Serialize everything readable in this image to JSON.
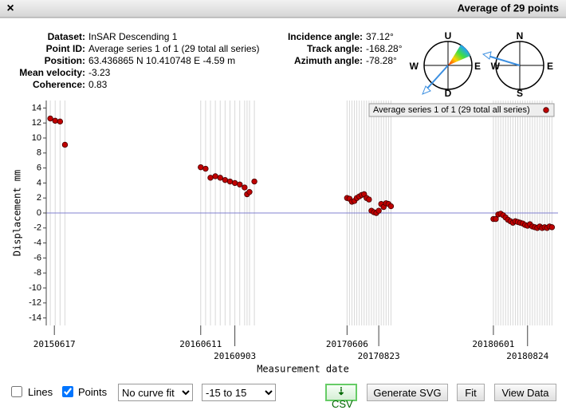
{
  "window": {
    "title": "Average of 29 points",
    "close": "×"
  },
  "info": {
    "left": [
      {
        "label": "Dataset:",
        "value": "InSAR Descending 1"
      },
      {
        "label": "Point ID:",
        "value": "Average series 1 of 1 (29 total all series)"
      },
      {
        "label": "Position:",
        "value": "63.436865 N 10.410748 E -4.59 m"
      },
      {
        "label": "Mean velocity:",
        "value": "-3.23"
      },
      {
        "label": "Coherence:",
        "value": "0.83"
      }
    ],
    "right": [
      {
        "label": "Incidence angle:",
        "value": "37.12°"
      },
      {
        "label": "Track angle:",
        "value": "-168.28°"
      },
      {
        "label": "Azimuth angle:",
        "value": "-78.28°"
      }
    ]
  },
  "compass": {
    "left": {
      "up": "U",
      "down": "D",
      "west": "W",
      "east": "E"
    },
    "right": {
      "north": "N",
      "south": "S",
      "west": "W",
      "east": "E"
    }
  },
  "chart_data": {
    "type": "scatter",
    "xlabel": "Measurement date",
    "ylabel": "Displacement mm",
    "x": [
      "20150607",
      "20150619",
      "20150701",
      "20150713",
      "20160611",
      "20160623",
      "20160705",
      "20160717",
      "20160729",
      "20160810",
      "20160822",
      "20160903",
      "20160915",
      "20160927",
      "20161003",
      "20161009",
      "20161021",
      "20170606",
      "20170612",
      "20170618",
      "20170624",
      "20170630",
      "20170706",
      "20170712",
      "20170718",
      "20170724",
      "20170730",
      "20170805",
      "20170811",
      "20170817",
      "20170823",
      "20170829",
      "20170904",
      "20170910",
      "20170916",
      "20170922",
      "20180601",
      "20180607",
      "20180613",
      "20180619",
      "20180625",
      "20180701",
      "20180707",
      "20180713",
      "20180719",
      "20180725",
      "20180731",
      "20180806",
      "20180812",
      "20180818",
      "20180824",
      "20180830",
      "20180905",
      "20180911",
      "20180917",
      "20180923",
      "20180929",
      "20181005",
      "20181011",
      "20181017",
      "20181023"
    ],
    "series": [
      {
        "name": "Average series 1 of 1 (29 total all series)",
        "color": "#c00000",
        "values": [
          12.6,
          12.3,
          12.2,
          9.1,
          6.1,
          5.9,
          4.7,
          4.9,
          4.7,
          4.4,
          4.2,
          4.0,
          3.8,
          3.4,
          2.5,
          2.8,
          4.2,
          2.0,
          1.9,
          1.5,
          1.6,
          2.0,
          2.2,
          2.4,
          2.5,
          2.0,
          1.8,
          0.3,
          0.1,
          0.0,
          0.3,
          1.2,
          0.8,
          1.3,
          1.2,
          0.9,
          -0.8,
          -0.8,
          -0.2,
          -0.1,
          -0.3,
          -0.6,
          -0.9,
          -1.1,
          -1.3,
          -1.1,
          -1.2,
          -1.3,
          -1.4,
          -1.6,
          -1.7,
          -1.5,
          -1.8,
          -1.9,
          -2.0,
          -1.8,
          -2.0,
          -1.9,
          -2.0,
          -1.8,
          -1.9
        ]
      }
    ],
    "xlim": [
      "20150528",
      "20181107"
    ],
    "xticks": [
      "20150617",
      "20160611",
      "20160903",
      "20170606",
      "20170823",
      "20180601",
      "20180824"
    ],
    "ylim": [
      -15,
      15
    ],
    "yticks": [
      -14,
      -12,
      -10,
      -8,
      -6,
      -4,
      -2,
      0,
      2,
      4,
      6,
      8,
      10,
      12,
      14
    ],
    "legend": "upper right"
  },
  "controls": {
    "lines": "Lines",
    "lines_checked": false,
    "points": "Points",
    "points_checked": true,
    "curve_fit": "No curve fit",
    "range": "-15 to 15",
    "buttons": [
      "CSV",
      "Generate SVG",
      "Fit",
      "View Data"
    ]
  }
}
